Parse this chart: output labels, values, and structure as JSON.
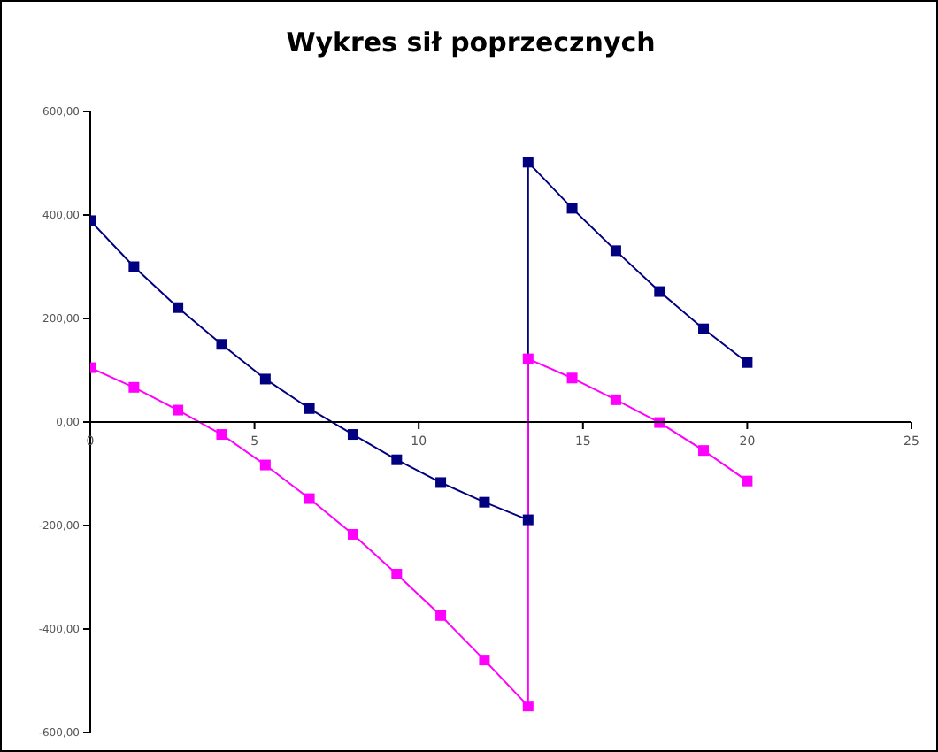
{
  "chart_data": {
    "type": "line",
    "title": "Wykres sił poprzecznych",
    "marker": "square",
    "grid": false,
    "legend": false,
    "xlim": [
      0,
      25
    ],
    "xticks": [
      0,
      5,
      10,
      15,
      20,
      25
    ],
    "ylim": [
      -600,
      600
    ],
    "yticks": [
      {
        "value": -600,
        "label": "-600,00"
      },
      {
        "value": -400,
        "label": "-400,00"
      },
      {
        "value": -200,
        "label": "-200,00"
      },
      {
        "value": 0,
        "label": "0,00"
      },
      {
        "value": 200,
        "label": "200,00"
      },
      {
        "value": 400,
        "label": "400,00"
      },
      {
        "value": 600,
        "label": "600,00"
      }
    ],
    "series": [
      {
        "color": "#000080",
        "x": [
          0,
          1.33,
          2.67,
          4,
          5.33,
          6.67,
          8,
          9.33,
          10.67,
          12,
          13.33,
          13.33,
          14.67,
          16,
          17.33,
          18.67,
          20
        ],
        "values": [
          389,
          300,
          221,
          150,
          83,
          26,
          -24,
          -73,
          -117,
          -155,
          -189,
          502,
          413,
          331,
          252,
          180,
          115
        ]
      },
      {
        "color": "#ff00ff",
        "x": [
          0,
          1.33,
          2.67,
          4,
          5.33,
          6.67,
          8,
          9.33,
          10.67,
          12,
          13.33,
          13.33,
          14.67,
          16,
          17.33,
          18.67,
          20
        ],
        "values": [
          105,
          67,
          23,
          -24,
          -83,
          -148,
          -217,
          -294,
          -374,
          -460,
          -549,
          122,
          85,
          43,
          -1,
          -55,
          -114
        ]
      }
    ]
  }
}
